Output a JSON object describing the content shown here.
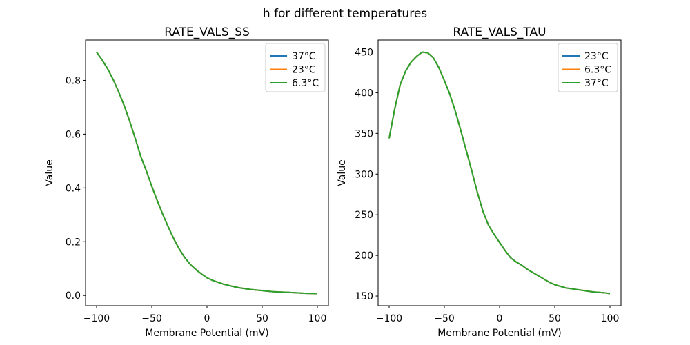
{
  "figure": {
    "suptitle": "h for different temperatures",
    "background_color": "#ffffff",
    "text_color": "#000000",
    "axis_color": "#000000",
    "legend_border_color": "#cccccc",
    "legend_background_color": "#ffffff"
  },
  "chart_data": [
    {
      "type": "line",
      "title": "RATE_VALS_SS",
      "xlabel": "Membrane Potential (mV)",
      "ylabel": "Value",
      "xlim": [
        -110,
        110
      ],
      "ylim": [
        -0.038,
        0.95
      ],
      "grid": false,
      "legend_position": "upper right",
      "x_ticks": [
        -100,
        -50,
        0,
        50,
        100
      ],
      "x_tick_labels": [
        "−100",
        "−50",
        "0",
        "50",
        "100"
      ],
      "y_ticks": [
        0.0,
        0.2,
        0.4,
        0.6,
        0.8
      ],
      "y_tick_labels": [
        "0.0",
        "0.2",
        "0.4",
        "0.6",
        "0.8"
      ],
      "x": [
        -100,
        -95,
        -90,
        -85,
        -80,
        -75,
        -70,
        -65,
        -60,
        -55,
        -50,
        -45,
        -40,
        -35,
        -30,
        -25,
        -20,
        -15,
        -10,
        -5,
        0,
        5,
        10,
        15,
        20,
        25,
        30,
        35,
        40,
        45,
        50,
        55,
        60,
        65,
        70,
        75,
        80,
        85,
        90,
        95,
        100
      ],
      "series": [
        {
          "name": "37°C",
          "color": "#1f77b4",
          "values": [
            0.905,
            0.876,
            0.843,
            0.803,
            0.757,
            0.706,
            0.648,
            0.584,
            0.517,
            0.464,
            0.406,
            0.352,
            0.301,
            0.254,
            0.21,
            0.172,
            0.14,
            0.115,
            0.096,
            0.08,
            0.066,
            0.056,
            0.049,
            0.042,
            0.037,
            0.032,
            0.028,
            0.025,
            0.022,
            0.02,
            0.018,
            0.016,
            0.014,
            0.013,
            0.012,
            0.011,
            0.01,
            0.009,
            0.008,
            0.0075,
            0.007
          ]
        },
        {
          "name": "23°C",
          "color": "#ff7f0e",
          "values": [
            0.905,
            0.876,
            0.843,
            0.803,
            0.757,
            0.706,
            0.648,
            0.584,
            0.517,
            0.464,
            0.406,
            0.352,
            0.301,
            0.254,
            0.21,
            0.172,
            0.14,
            0.115,
            0.096,
            0.08,
            0.066,
            0.056,
            0.049,
            0.042,
            0.037,
            0.032,
            0.028,
            0.025,
            0.022,
            0.02,
            0.018,
            0.016,
            0.014,
            0.013,
            0.012,
            0.011,
            0.01,
            0.009,
            0.008,
            0.0075,
            0.007
          ]
        },
        {
          "name": "6.3°C",
          "color": "#2ca02c",
          "values": [
            0.905,
            0.876,
            0.843,
            0.803,
            0.757,
            0.706,
            0.648,
            0.584,
            0.517,
            0.464,
            0.406,
            0.352,
            0.301,
            0.254,
            0.21,
            0.172,
            0.14,
            0.115,
            0.096,
            0.08,
            0.066,
            0.056,
            0.049,
            0.042,
            0.037,
            0.032,
            0.028,
            0.025,
            0.022,
            0.02,
            0.018,
            0.016,
            0.014,
            0.013,
            0.012,
            0.011,
            0.01,
            0.009,
            0.008,
            0.0075,
            0.007
          ]
        }
      ]
    },
    {
      "type": "line",
      "title": "RATE_VALS_TAU",
      "xlabel": "Membrane Potential (mV)",
      "ylabel": "Value",
      "xlim": [
        -110,
        110
      ],
      "ylim": [
        138.15,
        464.85
      ],
      "grid": false,
      "legend_position": "upper right",
      "x_ticks": [
        -100,
        -50,
        0,
        50,
        100
      ],
      "x_tick_labels": [
        "−100",
        "−50",
        "0",
        "50",
        "100"
      ],
      "y_ticks": [
        150,
        200,
        250,
        300,
        350,
        400,
        450
      ],
      "y_tick_labels": [
        "150",
        "200",
        "250",
        "300",
        "350",
        "400",
        "450"
      ],
      "x": [
        -100,
        -95,
        -90,
        -85,
        -80,
        -75,
        -70,
        -65,
        -60,
        -55,
        -50,
        -45,
        -40,
        -35,
        -30,
        -25,
        -20,
        -15,
        -10,
        -5,
        0,
        5,
        10,
        15,
        20,
        25,
        30,
        35,
        40,
        45,
        50,
        55,
        60,
        65,
        70,
        75,
        80,
        85,
        90,
        95,
        100
      ],
      "series": [
        {
          "name": "23°C",
          "color": "#1f77b4",
          "values": [
            344,
            380,
            410,
            427,
            438,
            445,
            450,
            449,
            443,
            431,
            415,
            398,
            377,
            353,
            328,
            303,
            277,
            254,
            237,
            226,
            216,
            206,
            197,
            192,
            188,
            183,
            179,
            175,
            171,
            167,
            164,
            162,
            160,
            159,
            158,
            157,
            156,
            155,
            154.5,
            154,
            153
          ]
        },
        {
          "name": "6.3°C",
          "color": "#ff7f0e",
          "values": [
            344,
            380,
            410,
            427,
            438,
            445,
            450,
            449,
            443,
            431,
            415,
            398,
            377,
            353,
            328,
            303,
            277,
            254,
            237,
            226,
            216,
            206,
            197,
            192,
            188,
            183,
            179,
            175,
            171,
            167,
            164,
            162,
            160,
            159,
            158,
            157,
            156,
            155,
            154.5,
            154,
            153
          ]
        },
        {
          "name": "37°C",
          "color": "#2ca02c",
          "values": [
            344,
            380,
            410,
            427,
            438,
            445,
            450,
            449,
            443,
            431,
            415,
            398,
            377,
            353,
            328,
            303,
            277,
            254,
            237,
            226,
            216,
            206,
            197,
            192,
            188,
            183,
            179,
            175,
            171,
            167,
            164,
            162,
            160,
            159,
            158,
            157,
            156,
            155,
            154.5,
            154,
            153
          ]
        }
      ]
    }
  ]
}
